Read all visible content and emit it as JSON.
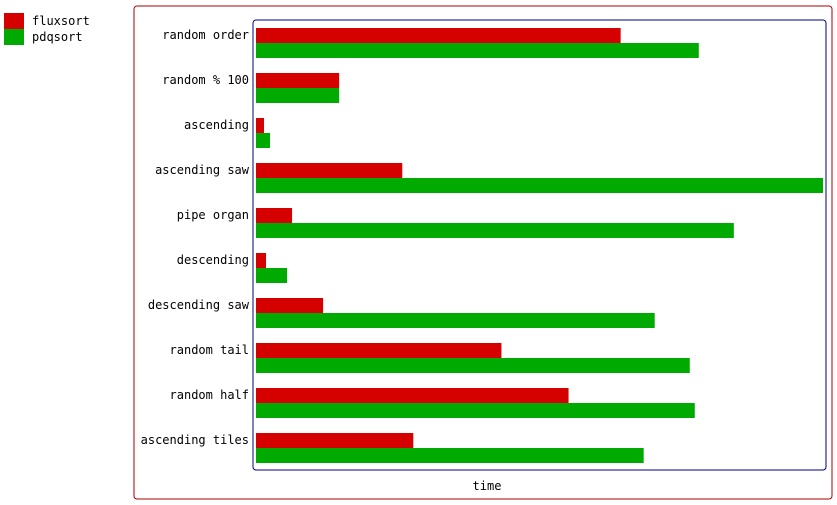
{
  "chart_data": {
    "type": "bar",
    "orientation": "horizontal",
    "title": "",
    "xlabel": "time",
    "ylabel": "",
    "categories": [
      "random order",
      "random % 100",
      "ascending",
      "ascending saw",
      "pipe organ",
      "descending",
      "descending saw",
      "random tail",
      "random half",
      "ascending tiles"
    ],
    "series": [
      {
        "name": "fluxsort",
        "color": "#d50000",
        "values": [
          364,
          83,
          8,
          146,
          36,
          10,
          67,
          245,
          312,
          157
        ]
      },
      {
        "name": "pdqsort",
        "color": "#00aa00",
        "values": [
          442,
          83,
          14,
          566,
          477,
          31,
          398,
          433,
          438,
          387
        ]
      }
    ],
    "xlim": [
      0,
      566
    ],
    "grid": false,
    "legend_position": "top-left",
    "outer_border_color": "#aa0000",
    "plot_border_color": "#000080"
  }
}
